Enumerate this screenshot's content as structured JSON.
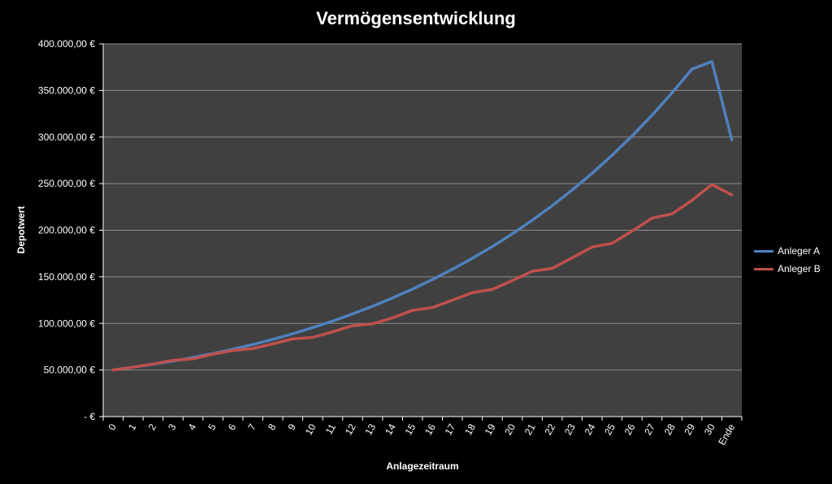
{
  "chart_data": {
    "type": "line",
    "title": "Vermögensentwicklung",
    "xlabel": "Anlagezeitraum",
    "ylabel": "Depotwert",
    "categories": [
      "0",
      "1",
      "2",
      "3",
      "4",
      "5",
      "6",
      "7",
      "8",
      "9",
      "10",
      "11",
      "12",
      "13",
      "14",
      "15",
      "16",
      "17",
      "18",
      "19",
      "20",
      "21",
      "22",
      "23",
      "24",
      "25",
      "26",
      "27",
      "28",
      "29",
      "30",
      "Ende"
    ],
    "ylim": [
      0,
      400000
    ],
    "yticks": [
      0,
      50000,
      100000,
      150000,
      200000,
      250000,
      300000,
      350000,
      400000
    ],
    "ytick_labels": [
      "-  €",
      "50.000,00 €",
      "100.000,00 €",
      "150.000,00 €",
      "200.000,00 €",
      "250.000,00 €",
      "300.000,00 €",
      "350.000,00 €",
      "400.000,00 €"
    ],
    "grid": true,
    "legend_position": "right",
    "series": [
      {
        "name": "Anleger A",
        "color": "#4f81bd",
        "values": [
          50000,
          53000,
          56200,
          59600,
          63400,
          67700,
          72300,
          77400,
          82900,
          88900,
          95600,
          102500,
          110200,
          118400,
          127300,
          136800,
          147100,
          158100,
          169900,
          182500,
          196100,
          210700,
          226300,
          243100,
          261100,
          280400,
          301100,
          323400,
          347300,
          372900,
          381000,
          297000
        ]
      },
      {
        "name": "Anleger B",
        "color": "#c0504d",
        "values": [
          50000,
          53000,
          56500,
          60500,
          62000,
          67000,
          71000,
          73000,
          78000,
          83500,
          85000,
          91000,
          97500,
          99500,
          106000,
          114000,
          117000,
          125000,
          133000,
          136500,
          146000,
          156000,
          159000,
          170500,
          182000,
          186000,
          199000,
          213000,
          217500,
          232000,
          249000,
          238000
        ]
      }
    ]
  }
}
